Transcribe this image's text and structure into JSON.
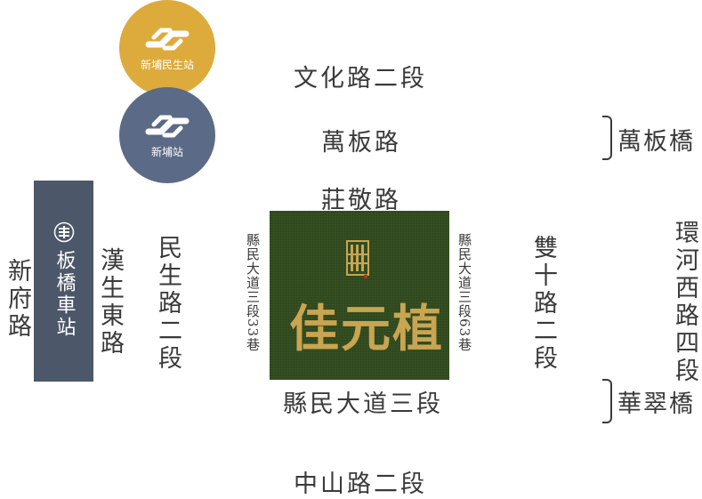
{
  "stations": {
    "xinpu_minsheng": {
      "label": "新埔民生站",
      "color": "#ddab3c",
      "icon": "metro-logo-icon"
    },
    "xinpu": {
      "label": "新埔站",
      "color": "#5b6a86",
      "icon": "metro-logo-icon"
    },
    "banqiao": {
      "label": "板橋車站",
      "color": "#4c5769",
      "icon": "railway-logo-icon"
    }
  },
  "roads": {
    "wenhua_2": "文化路二段",
    "wanban": "萬板路",
    "zhuangjing": "莊敬路",
    "xianmin_3": "縣民大道三段",
    "zhongshan_2": "中山路二段",
    "xinfu": "新府路",
    "hansheng_east": "漢生東路",
    "minsheng_2": "民生路二段",
    "lane33": "縣民大道三段33巷",
    "lane63": "縣民大道三段63巷",
    "shuangshi_2": "雙十路二段",
    "huanhe_west_4": "環河西路四段"
  },
  "bridges": {
    "wanban": "萬板橋",
    "huacui": "華翠橋"
  },
  "site": {
    "name": "佳元植",
    "bg_color": "#314b1e",
    "text_color": "#c9a552"
  }
}
